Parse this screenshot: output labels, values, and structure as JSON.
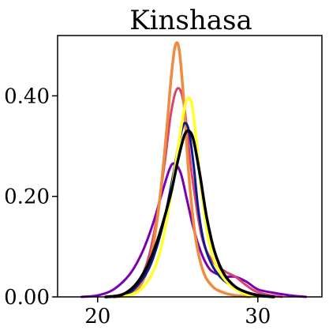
{
  "chart_data": {
    "type": "line",
    "title": "Kinshasa",
    "xlabel": "",
    "ylabel": "",
    "xlim": [
      17.5,
      34
    ],
    "ylim": [
      0,
      0.52
    ],
    "x_ticks": [
      20,
      30
    ],
    "x_tick_labels": [
      "20",
      "30"
    ],
    "y_ticks": [
      0.0,
      0.2,
      0.4
    ],
    "y_tick_labels": [
      "0.00",
      "0.20",
      "0.40"
    ],
    "grid": false,
    "series": [
      {
        "color": "#7a00b0",
        "stroke_width": 3,
        "x": [
          19.0,
          20.0,
          21.0,
          22.0,
          22.8,
          23.5,
          24.0,
          24.5,
          24.8,
          25.2,
          25.6,
          26.0,
          26.5,
          27.0,
          27.5,
          28.0,
          28.6,
          29.3,
          30.0,
          31.0,
          32.0,
          33.0
        ],
        "values": [
          0.0,
          0.003,
          0.015,
          0.045,
          0.09,
          0.15,
          0.205,
          0.255,
          0.265,
          0.245,
          0.19,
          0.135,
          0.085,
          0.055,
          0.045,
          0.04,
          0.04,
          0.03,
          0.015,
          0.008,
          0.003,
          0.0
        ]
      },
      {
        "color": "#d6456e",
        "stroke_width": 3,
        "x": [
          20.5,
          21.5,
          22.3,
          23.0,
          23.6,
          24.2,
          24.6,
          25.0,
          25.4,
          25.9,
          26.5,
          27.2,
          28.0,
          28.6,
          29.2,
          29.8,
          30.5,
          31.5
        ],
        "values": [
          0.0,
          0.005,
          0.02,
          0.06,
          0.14,
          0.27,
          0.37,
          0.415,
          0.38,
          0.24,
          0.12,
          0.07,
          0.05,
          0.04,
          0.025,
          0.012,
          0.005,
          0.0
        ]
      },
      {
        "color": "#f08a3e",
        "stroke_width": 3.5,
        "x": [
          21.0,
          22.0,
          22.8,
          23.4,
          23.9,
          24.3,
          24.6,
          24.85,
          25.1,
          25.4,
          25.7,
          26.1,
          26.6,
          27.2,
          27.9,
          28.6,
          29.5
        ],
        "values": [
          0.0,
          0.005,
          0.03,
          0.09,
          0.2,
          0.33,
          0.44,
          0.5,
          0.49,
          0.38,
          0.24,
          0.12,
          0.05,
          0.02,
          0.008,
          0.003,
          0.0
        ]
      },
      {
        "color": "#0d1b8c",
        "stroke_width": 3,
        "x": [
          21.0,
          22.0,
          23.0,
          23.6,
          24.2,
          24.7,
          25.1,
          25.4,
          25.7,
          26.0,
          26.3,
          26.7,
          27.2,
          27.8,
          28.5,
          29.2,
          30.0,
          31.0
        ],
        "values": [
          0.0,
          0.008,
          0.045,
          0.09,
          0.16,
          0.24,
          0.31,
          0.345,
          0.33,
          0.26,
          0.17,
          0.1,
          0.06,
          0.035,
          0.02,
          0.01,
          0.004,
          0.0
        ]
      },
      {
        "color": "#ffff2a",
        "stroke_width": 3.5,
        "x": [
          21.5,
          22.5,
          23.3,
          23.9,
          24.4,
          24.9,
          25.3,
          25.6,
          25.9,
          26.2,
          26.6,
          27.1,
          27.7,
          28.4,
          29.2,
          30.0
        ],
        "values": [
          0.0,
          0.01,
          0.04,
          0.09,
          0.17,
          0.27,
          0.355,
          0.395,
          0.38,
          0.3,
          0.18,
          0.09,
          0.045,
          0.02,
          0.006,
          0.0
        ]
      },
      {
        "color": "#000000",
        "stroke_width": 3.5,
        "x": [
          20.5,
          21.5,
          22.3,
          23.0,
          23.6,
          24.1,
          24.6,
          25.0,
          25.4,
          25.7,
          26.0,
          26.4,
          26.8,
          27.3,
          27.9,
          28.6,
          29.4,
          30.2,
          31.0
        ],
        "values": [
          0.0,
          0.004,
          0.022,
          0.055,
          0.1,
          0.15,
          0.21,
          0.27,
          0.32,
          0.33,
          0.31,
          0.24,
          0.16,
          0.09,
          0.045,
          0.02,
          0.008,
          0.002,
          0.0
        ]
      }
    ]
  }
}
